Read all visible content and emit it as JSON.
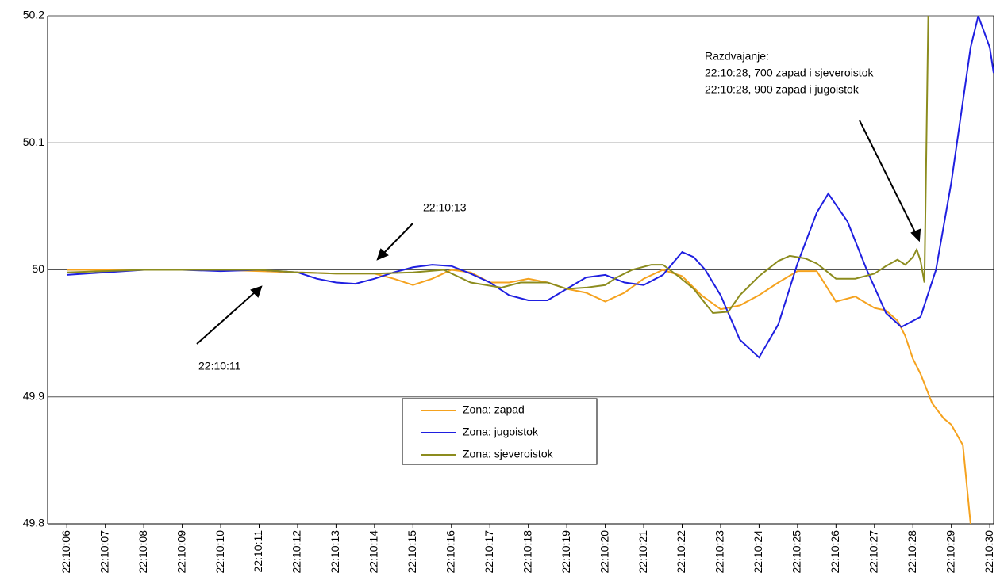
{
  "chart_data": {
    "type": "line",
    "annotations": [
      "22:10:13",
      "22:10:11",
      "Razdvajanje:",
      "22:10:28, 700 zapad i sjeveroistok",
      "22:10:28, 900 zapad i jugoistok"
    ],
    "xlim": [
      5.5,
      30.1
    ],
    "xticks": [
      {
        "value": 6,
        "label": "22:10:06"
      },
      {
        "value": 7,
        "label": "22:10:07"
      },
      {
        "value": 8,
        "label": "22:10:08"
      },
      {
        "value": 9,
        "label": "22:10:09"
      },
      {
        "value": 10,
        "label": "22:10:10"
      },
      {
        "value": 11,
        "label": "22:10:11"
      },
      {
        "value": 12,
        "label": "22:10:12"
      },
      {
        "value": 13,
        "label": "22:10:13"
      },
      {
        "value": 14,
        "label": "22:10:14"
      },
      {
        "value": 15,
        "label": "22:10:15"
      },
      {
        "value": 16,
        "label": "22:10:16"
      },
      {
        "value": 17,
        "label": "22:10:17"
      },
      {
        "value": 18,
        "label": "22:10:18"
      },
      {
        "value": 19,
        "label": "22:10:19"
      },
      {
        "value": 20,
        "label": "22:10:20"
      },
      {
        "value": 21,
        "label": "22:10:21"
      },
      {
        "value": 22,
        "label": "22:10:22"
      },
      {
        "value": 23,
        "label": "22:10:23"
      },
      {
        "value": 24,
        "label": "22:10:24"
      },
      {
        "value": 25,
        "label": "22:10:25"
      },
      {
        "value": 26,
        "label": "22:10:26"
      },
      {
        "value": 27,
        "label": "22:10:27"
      },
      {
        "value": 28,
        "label": "22:10:28"
      },
      {
        "value": 29,
        "label": "22:10:29"
      },
      {
        "value": 30,
        "label": "22:10:30"
      }
    ],
    "ylim": [
      49.8,
      50.2
    ],
    "yticks": [
      49.8,
      49.9,
      50,
      50.1,
      50.2
    ],
    "grid": true,
    "series": [
      {
        "name": "Zona: zapad",
        "color": "#f5a21e",
        "x": [
          6,
          7,
          8,
          9,
          10,
          11,
          12,
          13,
          14,
          14.5,
          15,
          15.5,
          16,
          16.5,
          17,
          17.5,
          18,
          18.5,
          19,
          19.5,
          20,
          20.5,
          21,
          21.5,
          22,
          22.5,
          23,
          23.5,
          24,
          24.5,
          25,
          25.5,
          26,
          26.5,
          27,
          27.3,
          27.6,
          27.8,
          28,
          28.2,
          28.5,
          28.8,
          29,
          29.3,
          29.5
        ],
        "values": [
          50,
          50,
          50,
          50,
          50,
          49.999,
          49.998,
          49.997,
          49.997,
          49.993,
          49.988,
          49.993,
          50,
          49.998,
          49.99,
          49.99,
          49.993,
          49.99,
          49.985,
          49.982,
          49.975,
          49.982,
          49.993,
          50,
          49.995,
          49.98,
          49.969,
          49.972,
          49.98,
          49.99,
          49.999,
          49.999,
          49.975,
          49.979,
          49.97,
          49.968,
          49.96,
          49.948,
          49.93,
          49.918,
          49.895,
          49.883,
          49.878,
          49.862,
          49.8
        ]
      },
      {
        "name": "Zona: jugoistok",
        "color": "#1f1fe0",
        "x": [
          6,
          7,
          8,
          9,
          10,
          11,
          12,
          12.5,
          13,
          13.5,
          14,
          14.5,
          15,
          15.5,
          16,
          16.5,
          17,
          17.5,
          18,
          18.5,
          19,
          19.5,
          20,
          20.5,
          21,
          21.5,
          22,
          22.3,
          22.6,
          23,
          23.5,
          24,
          24.5,
          25,
          25.5,
          25.8,
          26.3,
          26.8,
          27.3,
          27.7,
          28.2,
          28.6,
          29,
          29.5,
          29.7,
          30,
          30.1
        ],
        "values": [
          49.996,
          49.998,
          50,
          50,
          49.999,
          50,
          49.998,
          49.993,
          49.99,
          49.989,
          49.993,
          49.998,
          50.002,
          50.004,
          50.003,
          49.997,
          49.99,
          49.98,
          49.976,
          49.976,
          49.985,
          49.994,
          49.996,
          49.99,
          49.988,
          49.996,
          50.014,
          50.01,
          50,
          49.98,
          49.945,
          49.931,
          49.957,
          50.005,
          50.045,
          50.06,
          50.038,
          50,
          49.966,
          49.955,
          49.963,
          50,
          50.069,
          50.175,
          50.2,
          50.175,
          50.155
        ]
      },
      {
        "name": "Zona: sjeveroistok",
        "color": "#8c8c1e",
        "x": [
          6,
          7,
          8,
          9,
          10,
          11,
          12,
          13,
          14,
          15,
          15.8,
          16.5,
          17.3,
          17.8,
          18.5,
          19,
          19.5,
          20,
          20.3,
          20.7,
          21.2,
          21.5,
          21.9,
          22.3,
          22.8,
          23.2,
          23.5,
          24,
          24.5,
          24.8,
          25.2,
          25.5,
          26,
          26.5,
          27,
          27.3,
          27.6,
          27.8,
          28,
          28.1,
          28.2,
          28.3,
          28.4
        ],
        "values": [
          49.998,
          49.999,
          50,
          50,
          50,
          50,
          49.998,
          49.997,
          49.997,
          49.998,
          50,
          49.99,
          49.986,
          49.99,
          49.99,
          49.985,
          49.986,
          49.988,
          49.994,
          50,
          50.004,
          50.004,
          49.995,
          49.985,
          49.966,
          49.967,
          49.98,
          49.995,
          50.007,
          50.011,
          50.009,
          50.005,
          49.993,
          49.993,
          49.997,
          50.003,
          50.008,
          50.004,
          50.01,
          50.016,
          50.007,
          49.99,
          50.2
        ]
      }
    ]
  }
}
